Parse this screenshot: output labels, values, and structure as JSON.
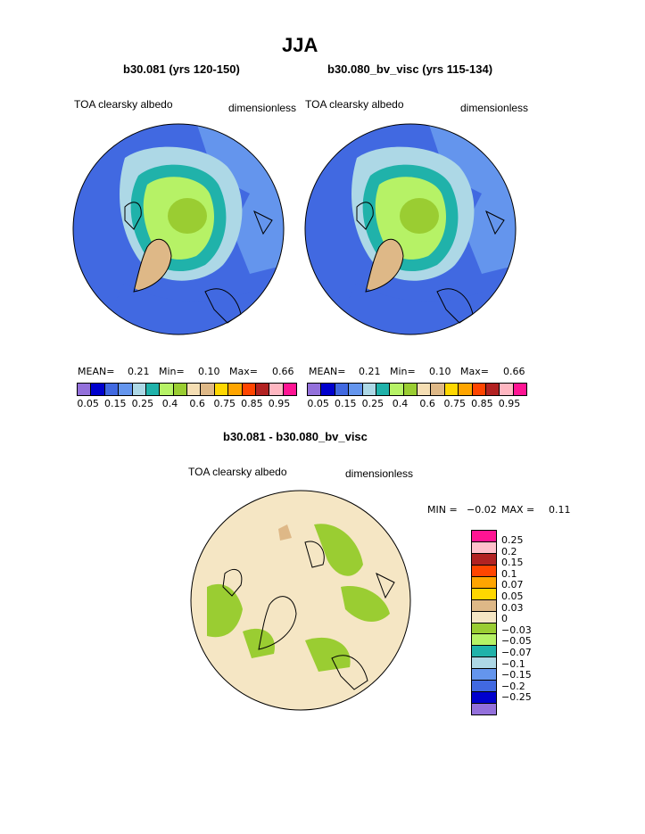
{
  "title": "JJA",
  "panel_left": {
    "case": "b30.081 (yrs 120-150)",
    "variable": "TOA clearsky albedo",
    "units": "dimensionless",
    "stats": {
      "mean_label": "MEAN=",
      "mean": "0.21",
      "min_label": "Min=",
      "min": "0.10",
      "max_label": "Max=",
      "max": "0.66"
    }
  },
  "panel_right": {
    "case": "b30.080_bv_visc (yrs 115-134)",
    "variable": "TOA clearsky albedo",
    "units": "dimensionless",
    "stats": {
      "mean_label": "MEAN=",
      "mean": "0.21",
      "min_label": "Min=",
      "min": "0.10",
      "max_label": "Max=",
      "max": "0.66"
    }
  },
  "panel_diff": {
    "case": "b30.081 - b30.080_bv_visc",
    "variable": "TOA clearsky albedo",
    "units": "dimensionless",
    "stats": {
      "min_label": "MIN =",
      "min": "−0.02",
      "max_label": "MAX =",
      "max": "0.11"
    }
  },
  "colorbar_top": {
    "colors": [
      "#9370db",
      "#0000cd",
      "#4169e1",
      "#6495ed",
      "#add8e6",
      "#20b2aa",
      "#b6f266",
      "#9acd32",
      "#f5deb3",
      "#deb887",
      "#ffd700",
      "#ffa500",
      "#ff4500",
      "#b22222",
      "#ffb6c1",
      "#ff1493"
    ],
    "labels": [
      "0.05",
      "0.15",
      "0.25",
      "0.4",
      "0.6",
      "0.75",
      "0.85",
      "0.95"
    ]
  },
  "colorbar_diff": {
    "colors": [
      "#ff1493",
      "#ffc0cb",
      "#b22222",
      "#ff4500",
      "#ffa500",
      "#ffd700",
      "#deb887",
      "#f5e6c4",
      "#9acd32",
      "#b6f266",
      "#20b2aa",
      "#add8e6",
      "#6495ed",
      "#4169e1",
      "#0000cd",
      "#9370db"
    ],
    "labels": [
      "0.25",
      "0.2",
      "0.15",
      "0.1",
      "0.07",
      "0.05",
      "0.03",
      "0",
      "−0.03",
      "−0.05",
      "−0.07",
      "−0.1",
      "−0.15",
      "−0.2",
      "−0.25"
    ]
  }
}
